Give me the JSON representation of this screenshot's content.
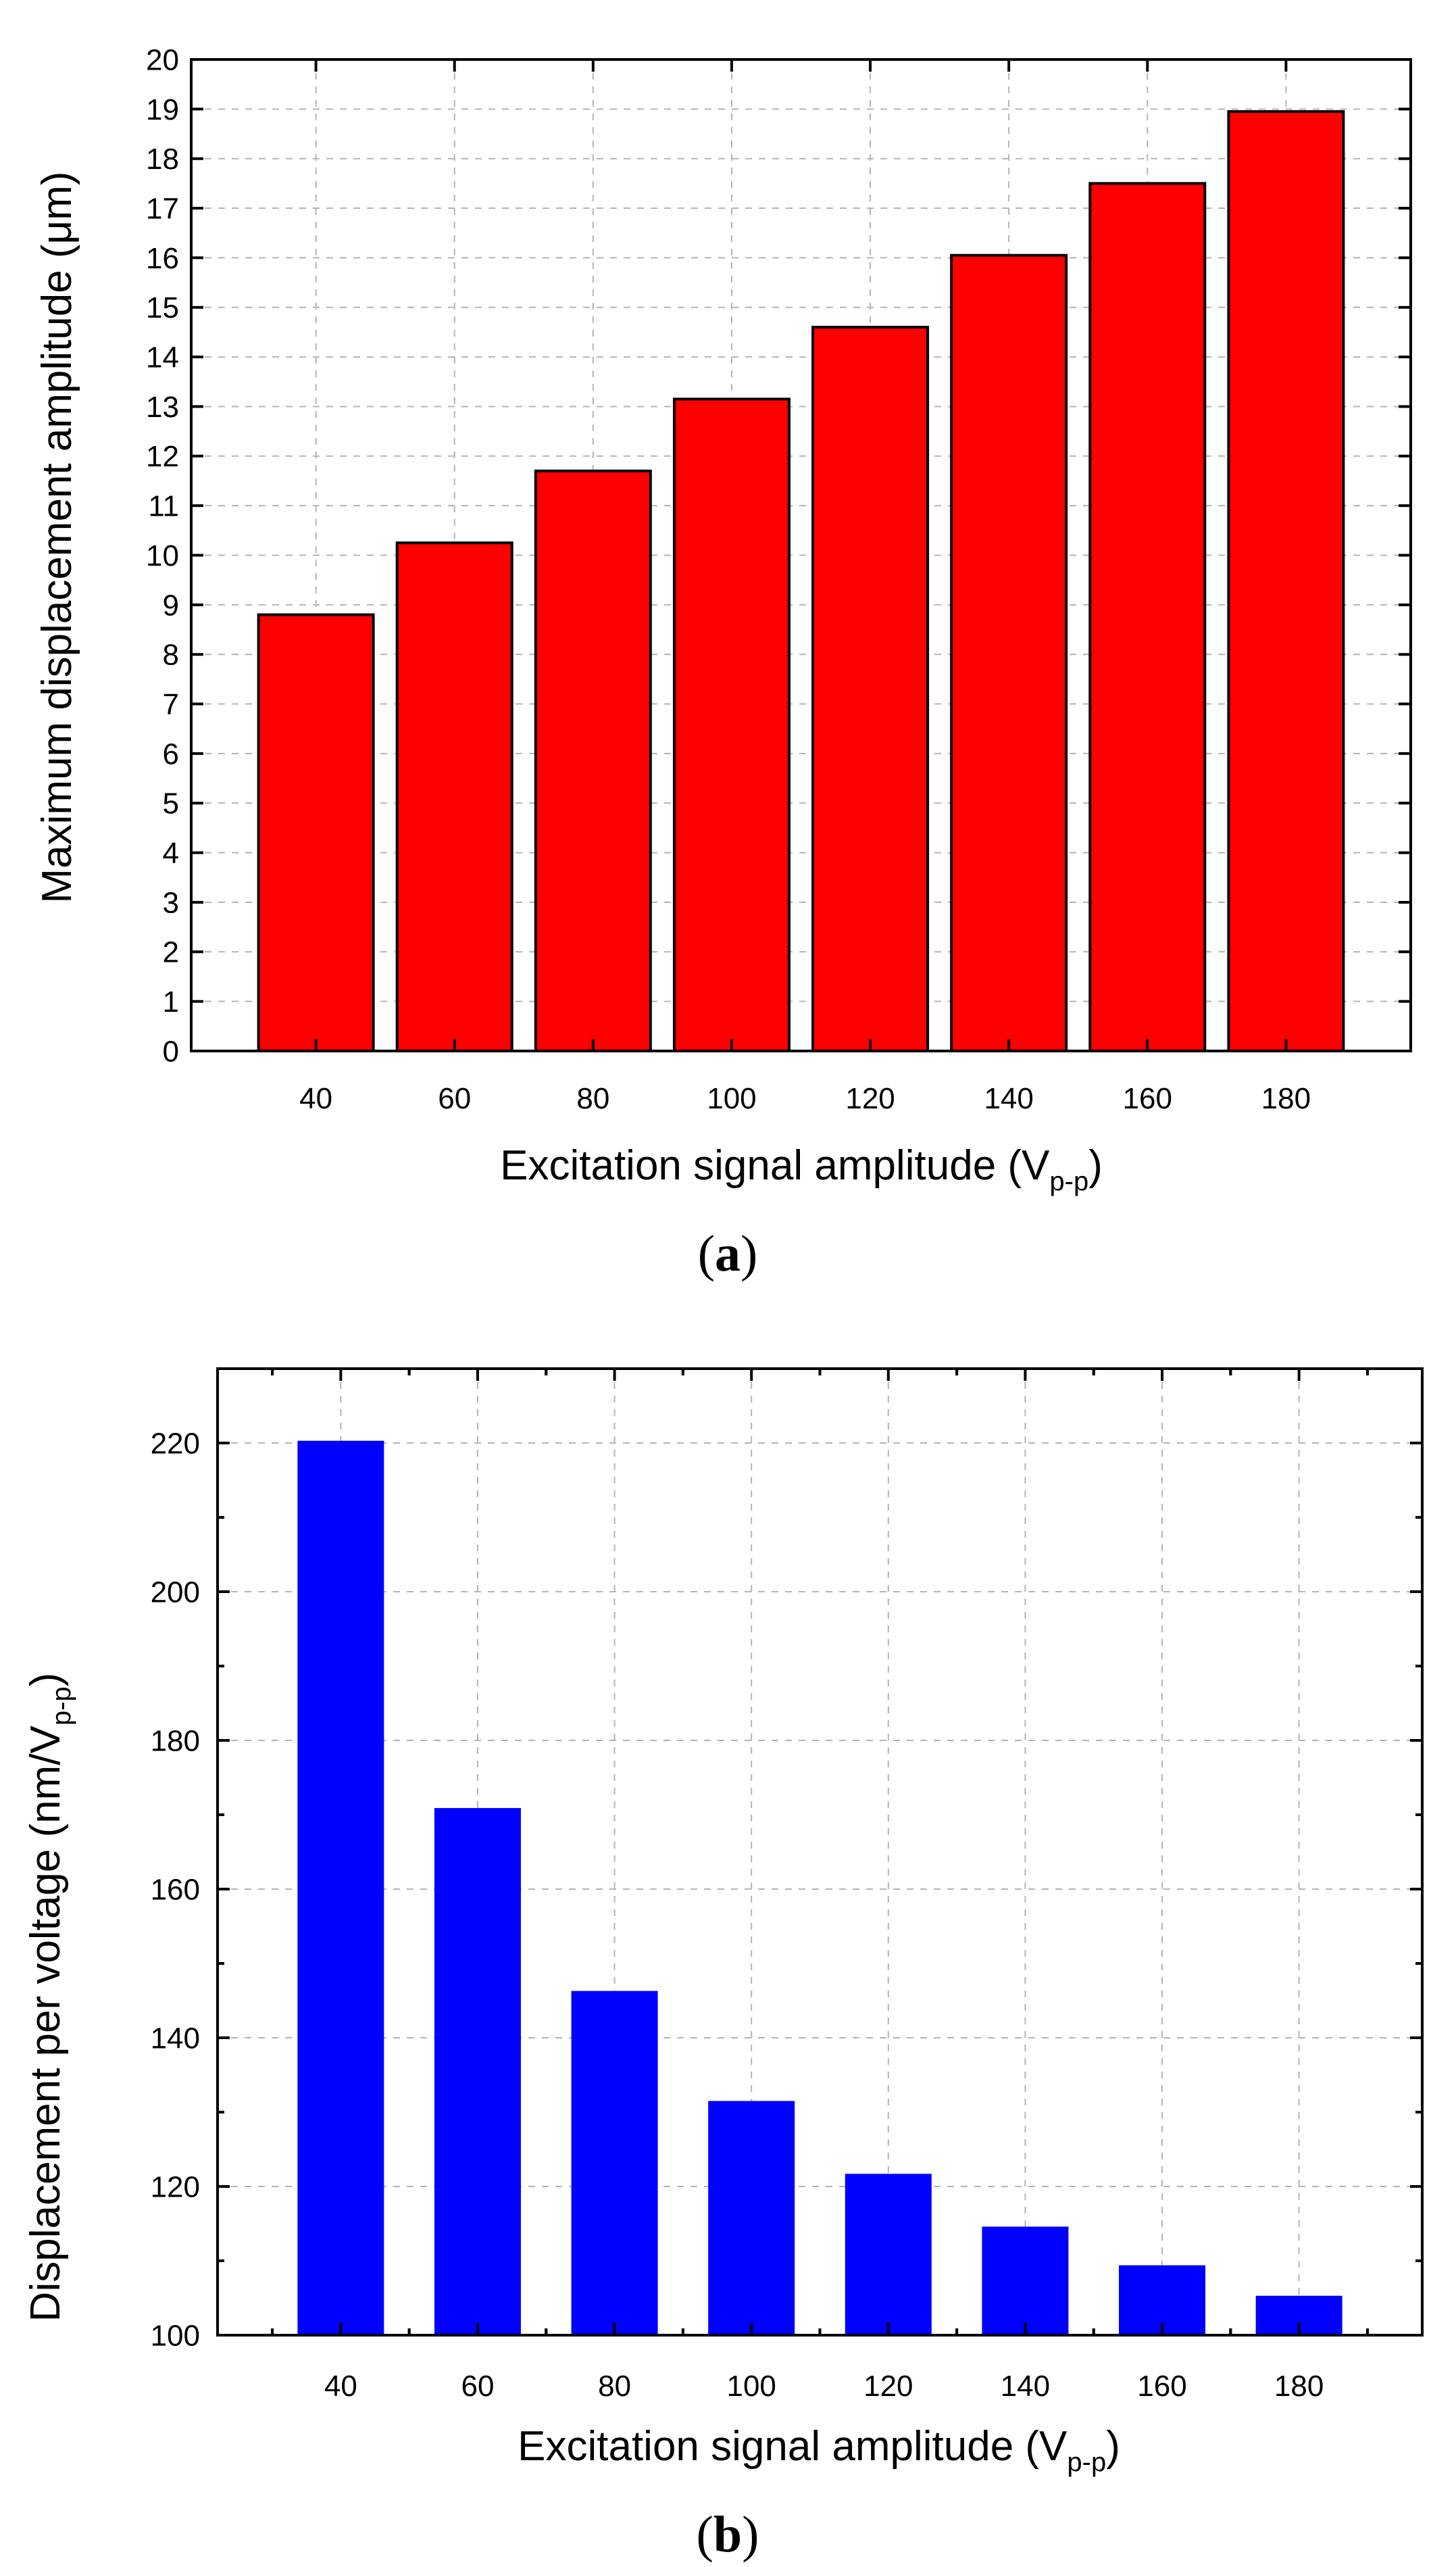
{
  "colors": {
    "panel_a_bar": "#ff0000",
    "panel_b_bar": "#0000ff",
    "axis": "#000000",
    "grid": "#b4b4b4",
    "background": "#ffffff"
  },
  "chart_data": [
    {
      "type": "bar",
      "panel": "a",
      "caption": "a",
      "categories": [
        "40",
        "60",
        "80",
        "100",
        "120",
        "140",
        "160",
        "180"
      ],
      "values": [
        8.8,
        10.25,
        11.7,
        13.15,
        14.6,
        16.05,
        17.5,
        18.95
      ],
      "xlabel": "Excitation signal amplitude (V",
      "xlabel_sub": "p-p",
      "xlabel_end": ")",
      "ylabel": "Maximum displacement amplitude (μm)",
      "ylim": [
        0,
        20
      ],
      "yticks": [
        "0",
        "1",
        "2",
        "3",
        "4",
        "5",
        "6",
        "7",
        "8",
        "9",
        "10",
        "11",
        "12",
        "13",
        "14",
        "15",
        "16",
        "17",
        "18",
        "19",
        "20"
      ],
      "grid": true,
      "bar_color": "#ff0000",
      "bar_outline": true
    },
    {
      "type": "bar",
      "panel": "b",
      "caption": "b",
      "categories": [
        "40",
        "60",
        "80",
        "100",
        "120",
        "140",
        "160",
        "180"
      ],
      "values": [
        220.3,
        170.9,
        146.3,
        131.5,
        121.7,
        114.6,
        109.4,
        105.3
      ],
      "xlabel": "Excitation signal amplitude (V",
      "xlabel_sub": "p-p",
      "xlabel_end": ")",
      "ylabel": "Displacement per voltage (nm/V",
      "ylabel_sub": "p-p",
      "ylabel_end": ")",
      "ylim": [
        100,
        230
      ],
      "yticks": [
        "100",
        "120",
        "140",
        "160",
        "180",
        "200",
        "220"
      ],
      "grid": true,
      "bar_color": "#0000ff",
      "bar_outline": false
    }
  ]
}
